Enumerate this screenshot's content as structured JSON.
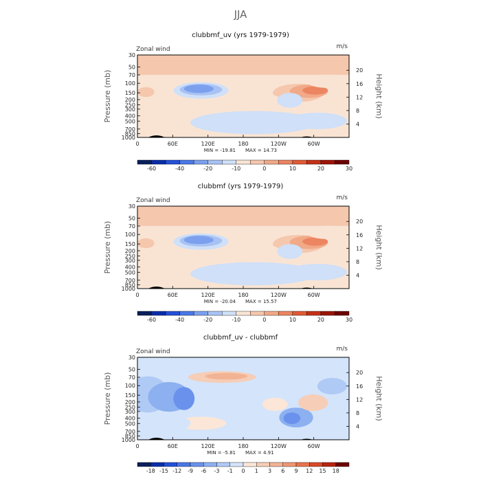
{
  "page_title": "JJA",
  "chart_data": [
    {
      "type": "heatmap",
      "title": "clubbmf_uv (yrs 1979-1979)",
      "left_label": "Zonal wind",
      "right_label": "m/s",
      "ylabel": "Pressure (mb)",
      "ylabel_right": "Height (km)",
      "xticks": [
        "0",
        "60E",
        "120E",
        "180",
        "120W",
        "60W"
      ],
      "yticks": [
        "30",
        "50",
        "70",
        "100",
        "150",
        "200",
        "250",
        "300",
        "400",
        "500",
        "700",
        "850",
        "1000"
      ],
      "yticks_right": [
        "20",
        "16",
        "12",
        "8",
        "4"
      ],
      "min_label": "MIN = -19.81",
      "max_label": "MAX = 14.73",
      "colorbar_labels": [
        "-60",
        "-40",
        "-20",
        "-10",
        "0",
        "10",
        "20",
        "30"
      ],
      "colorbar_colors": [
        "#08205a",
        "#0a2ea8",
        "#2450d8",
        "#4a78e6",
        "#7ca0ee",
        "#a8c2f4",
        "#cfe0f8",
        "#f9e4d4",
        "#f5c7ad",
        "#f1a987",
        "#ec8561",
        "#e05a35",
        "#c43118",
        "#9e1408",
        "#6e0000"
      ]
    },
    {
      "type": "heatmap",
      "title": "clubbmf (yrs 1979-1979)",
      "left_label": "Zonal wind",
      "right_label": "m/s",
      "ylabel": "Pressure (mb)",
      "ylabel_right": "Height (km)",
      "xticks": [
        "0",
        "60E",
        "120E",
        "180",
        "120W",
        "60W"
      ],
      "yticks": [
        "30",
        "50",
        "70",
        "100",
        "150",
        "200",
        "250",
        "300",
        "400",
        "500",
        "700",
        "850",
        "1000"
      ],
      "yticks_right": [
        "20",
        "16",
        "12",
        "8",
        "4"
      ],
      "min_label": "MIN = -20.04",
      "max_label": "MAX = 15.57",
      "colorbar_labels": [
        "-60",
        "-40",
        "-20",
        "-10",
        "0",
        "10",
        "20",
        "30"
      ],
      "colorbar_colors": [
        "#08205a",
        "#0a2ea8",
        "#2450d8",
        "#4a78e6",
        "#7ca0ee",
        "#a8c2f4",
        "#cfe0f8",
        "#f9e4d4",
        "#f5c7ad",
        "#f1a987",
        "#ec8561",
        "#e05a35",
        "#c43118",
        "#9e1408",
        "#6e0000"
      ]
    },
    {
      "type": "heatmap",
      "title": "clubbmf_uv - clubbmf",
      "left_label": "Zonal wind",
      "right_label": "m/s",
      "ylabel": "Pressure (mb)",
      "ylabel_right": "Height (km)",
      "xticks": [
        "0",
        "60E",
        "120E",
        "180",
        "120W",
        "60W"
      ],
      "yticks": [
        "30",
        "50",
        "70",
        "100",
        "150",
        "200",
        "250",
        "300",
        "400",
        "500",
        "700",
        "850",
        "1000"
      ],
      "yticks_right": [
        "20",
        "16",
        "12",
        "8",
        "4"
      ],
      "min_label": "MIN = -5.81",
      "max_label": "MAX = 4.91",
      "colorbar_labels": [
        "-18",
        "-15",
        "-12",
        "-9",
        "-6",
        "-3",
        "-1",
        "0",
        "1",
        "3",
        "6",
        "9",
        "12",
        "15",
        "18"
      ],
      "colorbar_colors": [
        "#08205a",
        "#0a2ea8",
        "#2450d8",
        "#4a78e6",
        "#6a92ec",
        "#8cb0f0",
        "#b0caf6",
        "#d4e4fa",
        "#fbe6d8",
        "#f6cdb6",
        "#f2b394",
        "#ee9672",
        "#e8744e",
        "#d84a28",
        "#b82410",
        "#6e0000"
      ]
    }
  ]
}
